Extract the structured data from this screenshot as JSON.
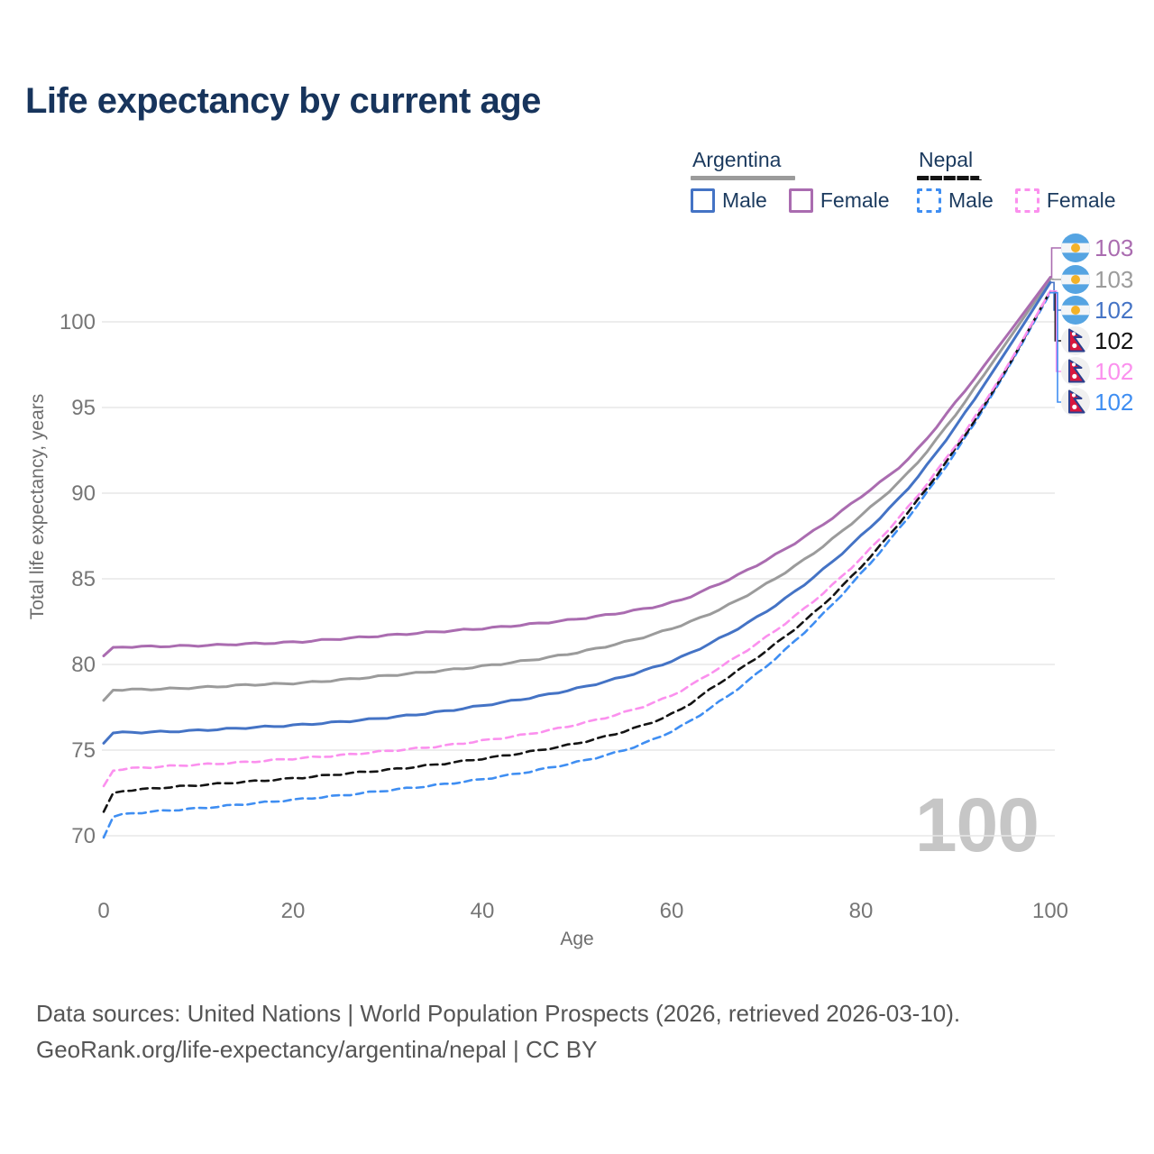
{
  "title": "Life expectancy by current age",
  "watermark": "100",
  "legend": {
    "argentina": {
      "label": "Argentina",
      "male_label": "Male",
      "female_label": "Female"
    },
    "nepal": {
      "label": "Nepal",
      "male_label": "Male",
      "female_label": "Female"
    }
  },
  "footer": {
    "line1": "Data sources: United Nations | World Population Prospects (2026, retrieved 2026-03-10).",
    "line2": "GeoRank.org/life-expectancy/argentina/nepal | CC BY"
  },
  "colors": {
    "title_text": "#17345c",
    "legend_text": "#1b3a5e",
    "tick_text": "#767676",
    "gridline": "#e7e7e7",
    "watermark": "#c6c6c6",
    "footer_text": "#555555"
  },
  "chart_data": {
    "type": "line",
    "title": "Life expectancy by current age",
    "xlabel": "Age",
    "ylabel": "Total life expectancy, years",
    "xticks": [
      0,
      20,
      40,
      60,
      80,
      100
    ],
    "yticks": [
      70,
      75,
      80,
      85,
      90,
      95,
      100
    ],
    "xlim": [
      0,
      100
    ],
    "ylim": [
      69.5,
      103
    ],
    "grid": "horizontal",
    "legend_position": "top-right",
    "ages": [
      0,
      1,
      5,
      10,
      15,
      20,
      25,
      30,
      35,
      40,
      45,
      50,
      55,
      60,
      65,
      70,
      75,
      80,
      85,
      90,
      95,
      100
    ],
    "series": [
      {
        "name": "Argentina Female",
        "country": "Argentina",
        "sex": "Female",
        "style": "solid",
        "color": "#aa6cb0",
        "end_label": "103",
        "values": [
          80.5,
          81.0,
          81.05,
          81.1,
          81.2,
          81.3,
          81.5,
          81.7,
          81.9,
          82.1,
          82.35,
          82.65,
          83.05,
          83.6,
          84.7,
          86.1,
          87.8,
          89.8,
          92.0,
          95.3,
          98.9,
          102.6
        ]
      },
      {
        "name": "Argentina Total",
        "country": "Argentina",
        "sex": "Both",
        "style": "solid",
        "color": "#9b9b9b",
        "end_label": "103",
        "values": [
          77.9,
          78.5,
          78.55,
          78.65,
          78.8,
          78.9,
          79.1,
          79.35,
          79.6,
          79.9,
          80.25,
          80.7,
          81.3,
          82.1,
          83.2,
          84.7,
          86.5,
          88.7,
          91.2,
          94.6,
          98.5,
          102.5
        ]
      },
      {
        "name": "Argentina Male",
        "country": "Argentina",
        "sex": "Male",
        "style": "solid",
        "color": "#4473c5",
        "end_label": "102",
        "values": [
          75.4,
          76.0,
          76.05,
          76.15,
          76.3,
          76.45,
          76.65,
          76.9,
          77.2,
          77.6,
          78.05,
          78.6,
          79.3,
          80.2,
          81.5,
          83.1,
          85.1,
          87.5,
          90.3,
          93.9,
          98.0,
          102.3
        ]
      },
      {
        "name": "Nepal Total",
        "country": "Nepal",
        "sex": "Both",
        "style": "dashed",
        "color": "#141414",
        "end_label": "102",
        "values": [
          71.4,
          72.5,
          72.75,
          72.95,
          73.15,
          73.35,
          73.6,
          73.85,
          74.15,
          74.5,
          74.9,
          75.4,
          76.1,
          77.1,
          78.9,
          80.8,
          83.0,
          85.7,
          88.9,
          92.6,
          96.9,
          101.8
        ]
      },
      {
        "name": "Nepal Female",
        "country": "Nepal",
        "sex": "Female",
        "style": "dashed",
        "color": "#fb90ee",
        "end_label": "102",
        "values": [
          72.9,
          73.8,
          74.0,
          74.15,
          74.3,
          74.5,
          74.7,
          74.95,
          75.2,
          75.55,
          75.95,
          76.5,
          77.2,
          78.2,
          79.8,
          81.6,
          83.7,
          86.2,
          89.2,
          92.8,
          97.0,
          101.8
        ]
      },
      {
        "name": "Nepal Male",
        "country": "Nepal",
        "sex": "Male",
        "style": "dashed",
        "color": "#3f8ef2",
        "end_label": "102",
        "values": [
          69.9,
          71.1,
          71.4,
          71.6,
          71.85,
          72.1,
          72.35,
          72.65,
          72.95,
          73.3,
          73.75,
          74.3,
          75.0,
          76.1,
          77.8,
          79.9,
          82.4,
          85.3,
          88.6,
          92.4,
          96.8,
          101.7
        ]
      }
    ],
    "end_label_rows": [
      "Argentina Female",
      "Argentina Total",
      "Argentina Male",
      "Nepal Total",
      "Nepal Female",
      "Nepal Male"
    ]
  }
}
